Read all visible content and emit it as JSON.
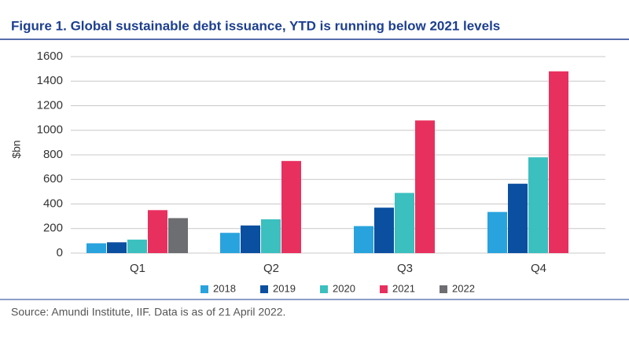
{
  "chart_data": {
    "type": "bar",
    "title": "Figure 1. Global sustainable debt issuance, YTD is running below 2021 levels",
    "y_label": "$bn",
    "source": "Source: Amundi Institute, IIF. Data is as of 21 April 2022.",
    "categories": [
      "Q1",
      "Q2",
      "Q3",
      "Q4"
    ],
    "series": [
      {
        "name": "2018",
        "color": "#29a3dd",
        "values": [
          80,
          165,
          220,
          335
        ]
      },
      {
        "name": "2019",
        "color": "#0b4fa0",
        "values": [
          88,
          225,
          370,
          565
        ]
      },
      {
        "name": "2020",
        "color": "#3bbfbf",
        "values": [
          110,
          275,
          490,
          780
        ]
      },
      {
        "name": "2021",
        "color": "#e8305f",
        "values": [
          350,
          750,
          1080,
          1480
        ]
      },
      {
        "name": "2022",
        "color": "#6d6e71",
        "values": [
          285,
          null,
          null,
          null
        ]
      }
    ],
    "ylim": [
      0,
      1600
    ],
    "yticks": [
      0,
      200,
      400,
      600,
      800,
      1000,
      1200,
      1400,
      1600
    ],
    "grid": true,
    "legend": "bottom"
  }
}
